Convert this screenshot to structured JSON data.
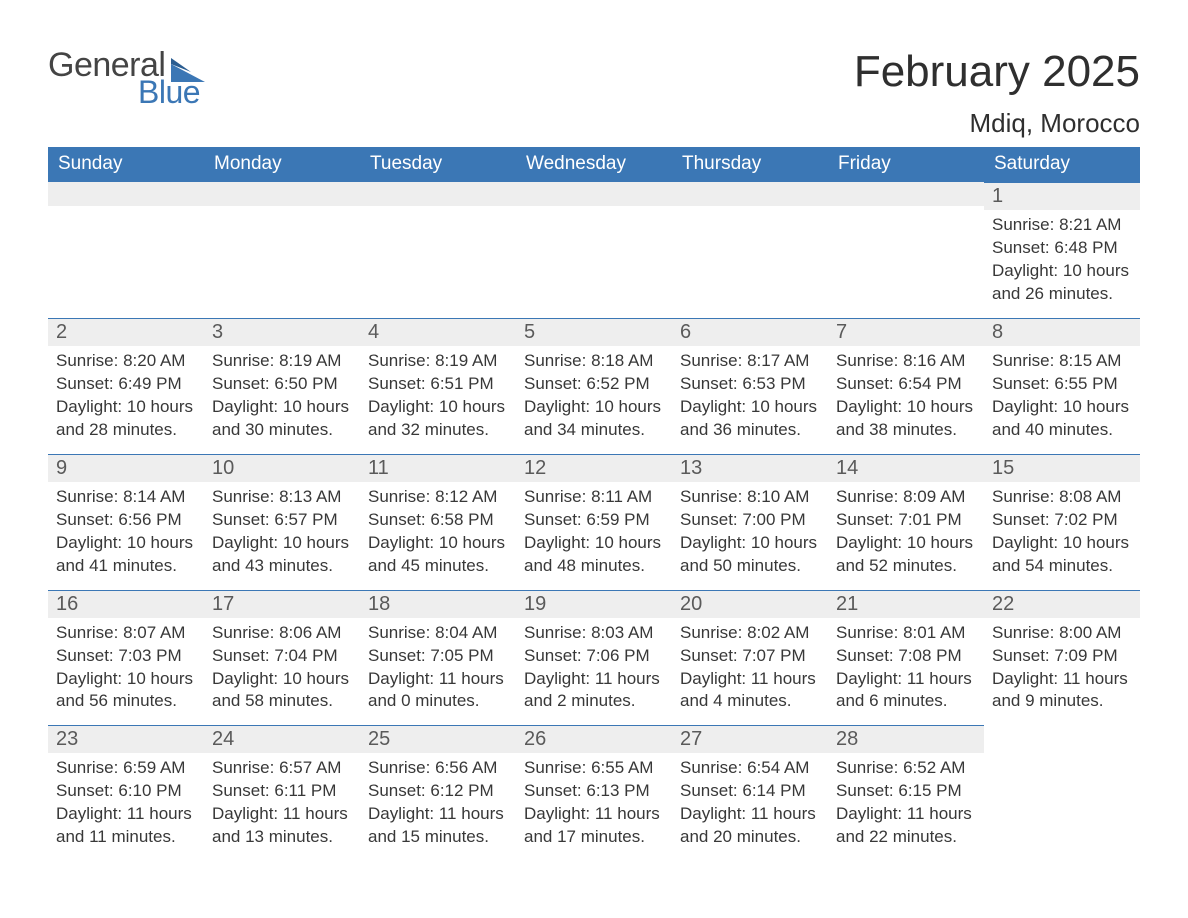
{
  "brand": {
    "part1": "General",
    "part2": "Blue"
  },
  "title": "February 2025",
  "location": "Mdiq, Morocco",
  "colors": {
    "header_bg": "#3b77b5",
    "header_fg": "#ffffff",
    "daynum_bg": "#eeeeee",
    "rule": "#3b77b5",
    "text": "#383838",
    "page_bg": "#ffffff"
  },
  "weekdays": [
    "Sunday",
    "Monday",
    "Tuesday",
    "Wednesday",
    "Thursday",
    "Friday",
    "Saturday"
  ],
  "first_weekday_index": 6,
  "days": [
    {
      "n": 1,
      "sunrise": "8:21 AM",
      "sunset": "6:48 PM",
      "daylight": "10 hours and 26 minutes."
    },
    {
      "n": 2,
      "sunrise": "8:20 AM",
      "sunset": "6:49 PM",
      "daylight": "10 hours and 28 minutes."
    },
    {
      "n": 3,
      "sunrise": "8:19 AM",
      "sunset": "6:50 PM",
      "daylight": "10 hours and 30 minutes."
    },
    {
      "n": 4,
      "sunrise": "8:19 AM",
      "sunset": "6:51 PM",
      "daylight": "10 hours and 32 minutes."
    },
    {
      "n": 5,
      "sunrise": "8:18 AM",
      "sunset": "6:52 PM",
      "daylight": "10 hours and 34 minutes."
    },
    {
      "n": 6,
      "sunrise": "8:17 AM",
      "sunset": "6:53 PM",
      "daylight": "10 hours and 36 minutes."
    },
    {
      "n": 7,
      "sunrise": "8:16 AM",
      "sunset": "6:54 PM",
      "daylight": "10 hours and 38 minutes."
    },
    {
      "n": 8,
      "sunrise": "8:15 AM",
      "sunset": "6:55 PM",
      "daylight": "10 hours and 40 minutes."
    },
    {
      "n": 9,
      "sunrise": "8:14 AM",
      "sunset": "6:56 PM",
      "daylight": "10 hours and 41 minutes."
    },
    {
      "n": 10,
      "sunrise": "8:13 AM",
      "sunset": "6:57 PM",
      "daylight": "10 hours and 43 minutes."
    },
    {
      "n": 11,
      "sunrise": "8:12 AM",
      "sunset": "6:58 PM",
      "daylight": "10 hours and 45 minutes."
    },
    {
      "n": 12,
      "sunrise": "8:11 AM",
      "sunset": "6:59 PM",
      "daylight": "10 hours and 48 minutes."
    },
    {
      "n": 13,
      "sunrise": "8:10 AM",
      "sunset": "7:00 PM",
      "daylight": "10 hours and 50 minutes."
    },
    {
      "n": 14,
      "sunrise": "8:09 AM",
      "sunset": "7:01 PM",
      "daylight": "10 hours and 52 minutes."
    },
    {
      "n": 15,
      "sunrise": "8:08 AM",
      "sunset": "7:02 PM",
      "daylight": "10 hours and 54 minutes."
    },
    {
      "n": 16,
      "sunrise": "8:07 AM",
      "sunset": "7:03 PM",
      "daylight": "10 hours and 56 minutes."
    },
    {
      "n": 17,
      "sunrise": "8:06 AM",
      "sunset": "7:04 PM",
      "daylight": "10 hours and 58 minutes."
    },
    {
      "n": 18,
      "sunrise": "8:04 AM",
      "sunset": "7:05 PM",
      "daylight": "11 hours and 0 minutes."
    },
    {
      "n": 19,
      "sunrise": "8:03 AM",
      "sunset": "7:06 PM",
      "daylight": "11 hours and 2 minutes."
    },
    {
      "n": 20,
      "sunrise": "8:02 AM",
      "sunset": "7:07 PM",
      "daylight": "11 hours and 4 minutes."
    },
    {
      "n": 21,
      "sunrise": "8:01 AM",
      "sunset": "7:08 PM",
      "daylight": "11 hours and 6 minutes."
    },
    {
      "n": 22,
      "sunrise": "8:00 AM",
      "sunset": "7:09 PM",
      "daylight": "11 hours and 9 minutes."
    },
    {
      "n": 23,
      "sunrise": "6:59 AM",
      "sunset": "6:10 PM",
      "daylight": "11 hours and 11 minutes."
    },
    {
      "n": 24,
      "sunrise": "6:57 AM",
      "sunset": "6:11 PM",
      "daylight": "11 hours and 13 minutes."
    },
    {
      "n": 25,
      "sunrise": "6:56 AM",
      "sunset": "6:12 PM",
      "daylight": "11 hours and 15 minutes."
    },
    {
      "n": 26,
      "sunrise": "6:55 AM",
      "sunset": "6:13 PM",
      "daylight": "11 hours and 17 minutes."
    },
    {
      "n": 27,
      "sunrise": "6:54 AM",
      "sunset": "6:14 PM",
      "daylight": "11 hours and 20 minutes."
    },
    {
      "n": 28,
      "sunrise": "6:52 AM",
      "sunset": "6:15 PM",
      "daylight": "11 hours and 22 minutes."
    }
  ],
  "labels": {
    "sunrise": "Sunrise: ",
    "sunset": "Sunset: ",
    "daylight": "Daylight: "
  }
}
